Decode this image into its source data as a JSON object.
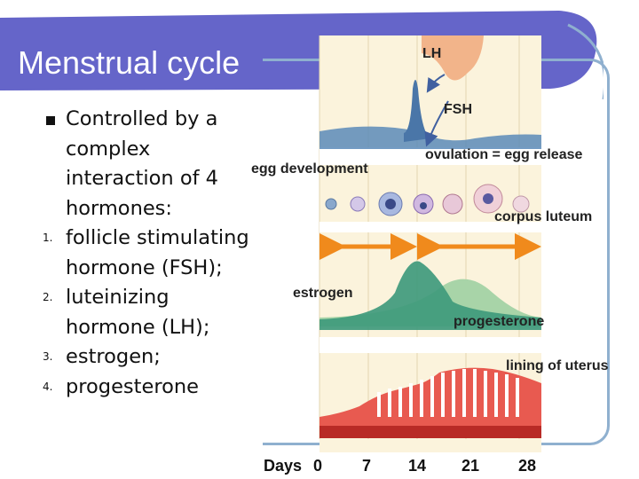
{
  "title": "Menstrual cycle",
  "intro": "Controlled by a complex interaction of 4 hormones:",
  "hormones": [
    {
      "marker": "1.",
      "text": "follicle stimulating hormone (FSH);"
    },
    {
      "marker": "2.",
      "text": "luteinizing hormone (LH);"
    },
    {
      "marker": "3.",
      "text": "estrogen;"
    },
    {
      "marker": "4.",
      "text": "progesterone"
    }
  ],
  "diagram": {
    "labels": {
      "lh": "LH",
      "fsh": "FSH",
      "egg_development": "egg development",
      "ovulation": "ovulation = egg release",
      "corpus_luteum": "corpus luteum",
      "estrogen": "estrogen",
      "progesterone": "progesterone",
      "uterus_lining": "lining of uterus"
    },
    "days_label": "Days",
    "days": [
      "0",
      "7",
      "14",
      "21",
      "28"
    ]
  },
  "colors": {
    "title_bar": "#6565c9",
    "lh_fsh_curve": "#5a8ab8",
    "estrogen_curve": "#3f9a7c",
    "progesterone_curve": "#a8d4a8",
    "arrow": "#f08a1c",
    "uterus": "#d9332f",
    "panel": "#fbf3dc"
  }
}
